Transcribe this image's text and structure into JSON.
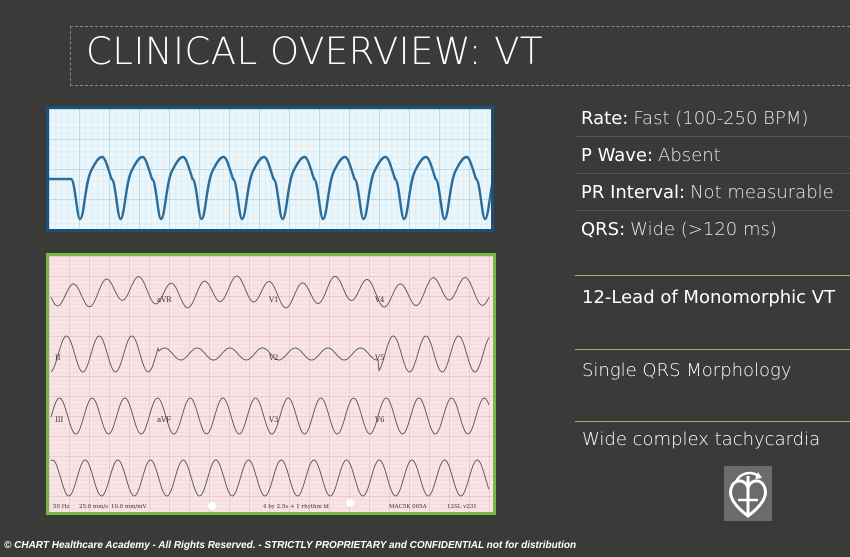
{
  "title": "CLINICAL OVERVIEW: VT",
  "properties": [
    {
      "key": "Rate:",
      "value": "Fast (100-250 BPM)"
    },
    {
      "key": "P Wave:",
      "value": "Absent"
    },
    {
      "key": "PR Interval:",
      "value": "Not measurable"
    },
    {
      "key": "QRS:",
      "value": "Wide (>120 ms)"
    }
  ],
  "sections": {
    "twelve_lead": "12-Lead of Monomorphic VT",
    "morphology": "Single QRS Morphology",
    "tachycardia": "Wide complex tachycardia"
  },
  "ecg12_labels": {
    "avr": "aVR",
    "v1": "V1",
    "v4": "V4",
    "ii": "II",
    "v2": "V2",
    "v5": "V5",
    "iii": "III",
    "avf": "aVF",
    "v3": "V3",
    "v6": "V6",
    "footer_left": "50 Hz",
    "footer_speed": "25.0 mm/s",
    "footer_gain": "10.0 mm/mV",
    "footer_mid": "4 by 2.5s + 1 rhythm ld",
    "footer_right": "MAC5K 005A",
    "footer_right2": "12SL v231"
  },
  "footer": "© CHART Healthcare Academy - All Rights Reserved.  -  STRICTLY PROPRIETARY and CONFIDENTIAL not for distribution",
  "colors": {
    "background": "#3a3a38",
    "strip_border": "#1f4e79",
    "ecg12_border": "#7ab648",
    "separator": "#8fbf5a",
    "trace": "#2a6c9b"
  },
  "icons": {
    "logo": "chart-heart-logo-icon"
  }
}
